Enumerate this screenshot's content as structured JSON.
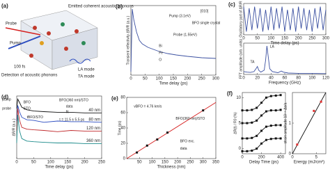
{
  "diagram_a": {
    "title": "(a)",
    "labels": [
      "Probe",
      "Pump",
      "100 fs",
      "Emitted coherent acoustic phonons",
      "Detection of acoustic phonons",
      "LA mode",
      "TA mode"
    ]
  },
  "chart_data": [
    {
      "type": "line",
      "title": "(b)",
      "xlabel": "Time delay (ps)",
      "ylabel": "Transient reflectivity ΔR/R (a.u.)",
      "xlim": [
        0,
        300
      ],
      "xticks": [
        0,
        50,
        100,
        150,
        200,
        250,
        300
      ],
      "ylim": [
        0,
        1
      ],
      "series": [
        {
          "color": "#3a4fa0",
          "mode": "lines",
          "x": [
            0,
            5,
            10,
            20,
            30,
            40,
            60,
            80,
            100,
            130,
            160,
            200,
            250,
            300
          ],
          "values": [
            0.05,
            0.95,
            0.8,
            0.62,
            0.5,
            0.45,
            0.4,
            0.37,
            0.34,
            0.31,
            0.29,
            0.27,
            0.25,
            0.24
          ]
        }
      ],
      "annotations": [
        "Pump (3.1eV)",
        "Probe (1.55eV)",
        "[010]",
        "BFO single crystal",
        "Bi",
        "Fe",
        "O"
      ]
    },
    {
      "type": "line",
      "title": "(c)",
      "xlabel": "Time delay (ps)",
      "ylabel": "Oscillatory part of ΔR/R",
      "xlim": [
        0,
        300
      ],
      "xticks": [
        0,
        50,
        100,
        150,
        200,
        250,
        300
      ],
      "ylim": [
        -1,
        1
      ],
      "series": [
        {
          "color": "#3a4fa0",
          "mode": "lines",
          "x": [
            0,
            10,
            20,
            30,
            40,
            50,
            60,
            70,
            80,
            90,
            100,
            110,
            120,
            130,
            140,
            150,
            160,
            170,
            180,
            190,
            200,
            210,
            220,
            230,
            240,
            250,
            260,
            270,
            280,
            290,
            300
          ],
          "values": [
            0.8,
            -0.8,
            0.7,
            -0.7,
            0.8,
            -0.6,
            0.7,
            -0.8,
            0.6,
            -0.7,
            0.8,
            -0.7,
            0.7,
            -0.6,
            0.8,
            -0.8,
            0.6,
            -0.7,
            0.7,
            -0.8,
            0.8,
            -0.6,
            0.7,
            -0.7,
            0.6,
            -0.8,
            0.7,
            -0.6,
            0.8,
            -0.7,
            0.6
          ]
        }
      ],
      "annotations": []
    },
    {
      "type": "line",
      "xlabel": "Frequency (GHz)",
      "ylabel": "FFT amplitude (arb. units)",
      "xlim": [
        0,
        120
      ],
      "xticks": [
        0,
        20,
        40,
        60,
        80,
        100,
        120
      ],
      "ylim": [
        0,
        1.1
      ],
      "series": [
        {
          "color": "#3a4fa0",
          "mode": "lines",
          "x": [
            0,
            5,
            10,
            15,
            18,
            20,
            22,
            25,
            30,
            32,
            34,
            36,
            38,
            42,
            50,
            55,
            58,
            65,
            80,
            100,
            120
          ],
          "values": [
            0.1,
            0.08,
            0.07,
            0.1,
            0.2,
            0.28,
            0.15,
            0.08,
            0.15,
            0.5,
            1.0,
            0.6,
            0.2,
            0.1,
            0.06,
            0.12,
            0.08,
            0.05,
            0.04,
            0.04,
            0.03
          ]
        }
      ],
      "annotations": [
        "LA",
        "TA"
      ]
    },
    {
      "type": "line",
      "title": "(d)",
      "xlabel": "Time delay (ps)",
      "ylabel": "ΔR/R (a.u.)",
      "xlim": [
        0,
        250
      ],
      "xticks": [
        0,
        50,
        100,
        150,
        200,
        250
      ],
      "ylim": [
        0,
        1
      ],
      "series": [
        {
          "name": "40 nm",
          "color": "#111111",
          "mode": "lines",
          "x": [
            0,
            3,
            8,
            15,
            30,
            50,
            80,
            120,
            160,
            200,
            250
          ],
          "values": [
            0.8,
            0.95,
            0.9,
            0.82,
            0.78,
            0.76,
            0.75,
            0.74,
            0.74,
            0.73,
            0.73
          ]
        },
        {
          "name": "80 nm",
          "color": "#2b4cc0",
          "mode": "lines",
          "x": [
            0,
            3,
            8,
            15,
            30,
            50,
            80,
            120,
            160,
            200,
            250
          ],
          "values": [
            0.6,
            0.85,
            0.75,
            0.66,
            0.62,
            0.61,
            0.58,
            0.6,
            0.59,
            0.59,
            0.58
          ]
        },
        {
          "name": "120 nm",
          "color": "#c0282b",
          "mode": "lines",
          "x": [
            0,
            3,
            8,
            15,
            30,
            50,
            80,
            120,
            160,
            200,
            250
          ],
          "values": [
            0.45,
            0.8,
            0.62,
            0.5,
            0.47,
            0.46,
            0.45,
            0.43,
            0.45,
            0.44,
            0.44
          ]
        },
        {
          "name": "360 nm",
          "color": "#1a8a8a",
          "mode": "lines",
          "x": [
            0,
            3,
            8,
            15,
            30,
            50,
            80,
            120,
            160,
            200,
            250
          ],
          "values": [
            0.25,
            0.7,
            0.45,
            0.32,
            0.28,
            0.27,
            0.26,
            0.25,
            0.25,
            0.24,
            0.24
          ]
        }
      ],
      "annotations": [
        "pump",
        "probe",
        "BFO",
        "STO",
        "BFO(360 nm)/STO",
        "data",
        "fit",
        "τ = 11.5 ± 5.5 ps",
        "tBFO/STO"
      ]
    },
    {
      "type": "line",
      "title": "(e)",
      "xlabel": "Thickness (nm)",
      "ylabel": "Time (ps)",
      "xlim": [
        0,
        350
      ],
      "xticks": [
        50,
        100,
        150,
        200,
        250,
        300,
        350
      ],
      "ylim": [
        0,
        80
      ],
      "yticks": [
        0,
        20,
        40,
        60,
        80
      ],
      "series": [
        {
          "color": "#d62020",
          "mode": "lines",
          "x": [
            0,
            350
          ],
          "values": [
            0,
            73.5
          ]
        },
        {
          "color": "#111111",
          "mode": "markers",
          "x": [
            40,
            80,
            120,
            160,
            300
          ],
          "values": [
            8,
            17,
            25,
            34,
            63
          ]
        }
      ],
      "annotations": [
        "vBFO = 4.76 km/s",
        "BFO(360 nm)/STO",
        "BFO exc.",
        "data"
      ]
    },
    {
      "type": "line",
      "title": "(f)",
      "xlabel": "Delay Time (ps)",
      "ylabel": "ΔR(t) / R0 (%)",
      "xlim": [
        0,
        450
      ],
      "xticks": [
        0,
        200,
        400
      ],
      "ylim": [
        -1,
        11
      ],
      "yticks": [
        0,
        5,
        10
      ],
      "series": [
        {
          "color": "#111111",
          "mode": "lines+markers",
          "x": [
            0,
            50,
            100,
            150,
            200,
            250,
            300,
            350,
            400
          ],
          "values": [
            7.5,
            7.5,
            7.6,
            8,
            9,
            10,
            10.3,
            10.4,
            10.5
          ]
        },
        {
          "color": "#111111",
          "mode": "lines+markers",
          "x": [
            0,
            50,
            100,
            150,
            200,
            250,
            300,
            350,
            400
          ],
          "values": [
            5,
            5,
            5.1,
            5.5,
            6.5,
            7.3,
            7.5,
            7.5,
            7.6
          ]
        },
        {
          "color": "#111111",
          "mode": "lines+markers",
          "x": [
            0,
            50,
            100,
            150,
            200,
            250,
            300,
            350,
            400
          ],
          "values": [
            2,
            2,
            2.1,
            2.5,
            3.5,
            4.3,
            4.5,
            4.6,
            4.6
          ]
        },
        {
          "color": "#111111",
          "mode": "lines+markers",
          "x": [
            0,
            50,
            100,
            150,
            200,
            250,
            300,
            350,
            400
          ],
          "values": [
            -0.5,
            -0.5,
            -0.4,
            0,
            1,
            1.7,
            1.9,
            2,
            2
          ]
        }
      ],
      "annotations": []
    },
    {
      "type": "line",
      "xlabel": "Energy (mJ/cm²)",
      "ylabel": "strain amplitude 10⁻⁴ Δa/a",
      "xlim": [
        0,
        7
      ],
      "xticks": [
        0,
        5
      ],
      "ylim": [
        0,
        2
      ],
      "yticks": [
        0,
        1
      ],
      "series": [
        {
          "color": "#111111",
          "mode": "lines",
          "x": [
            0,
            7
          ],
          "values": [
            0,
            2
          ]
        },
        {
          "color": "#e03030",
          "mode": "markers",
          "x": [
            1,
            4.5,
            6
          ],
          "values": [
            0.3,
            1.4,
            1.7
          ]
        }
      ],
      "annotations": []
    }
  ]
}
